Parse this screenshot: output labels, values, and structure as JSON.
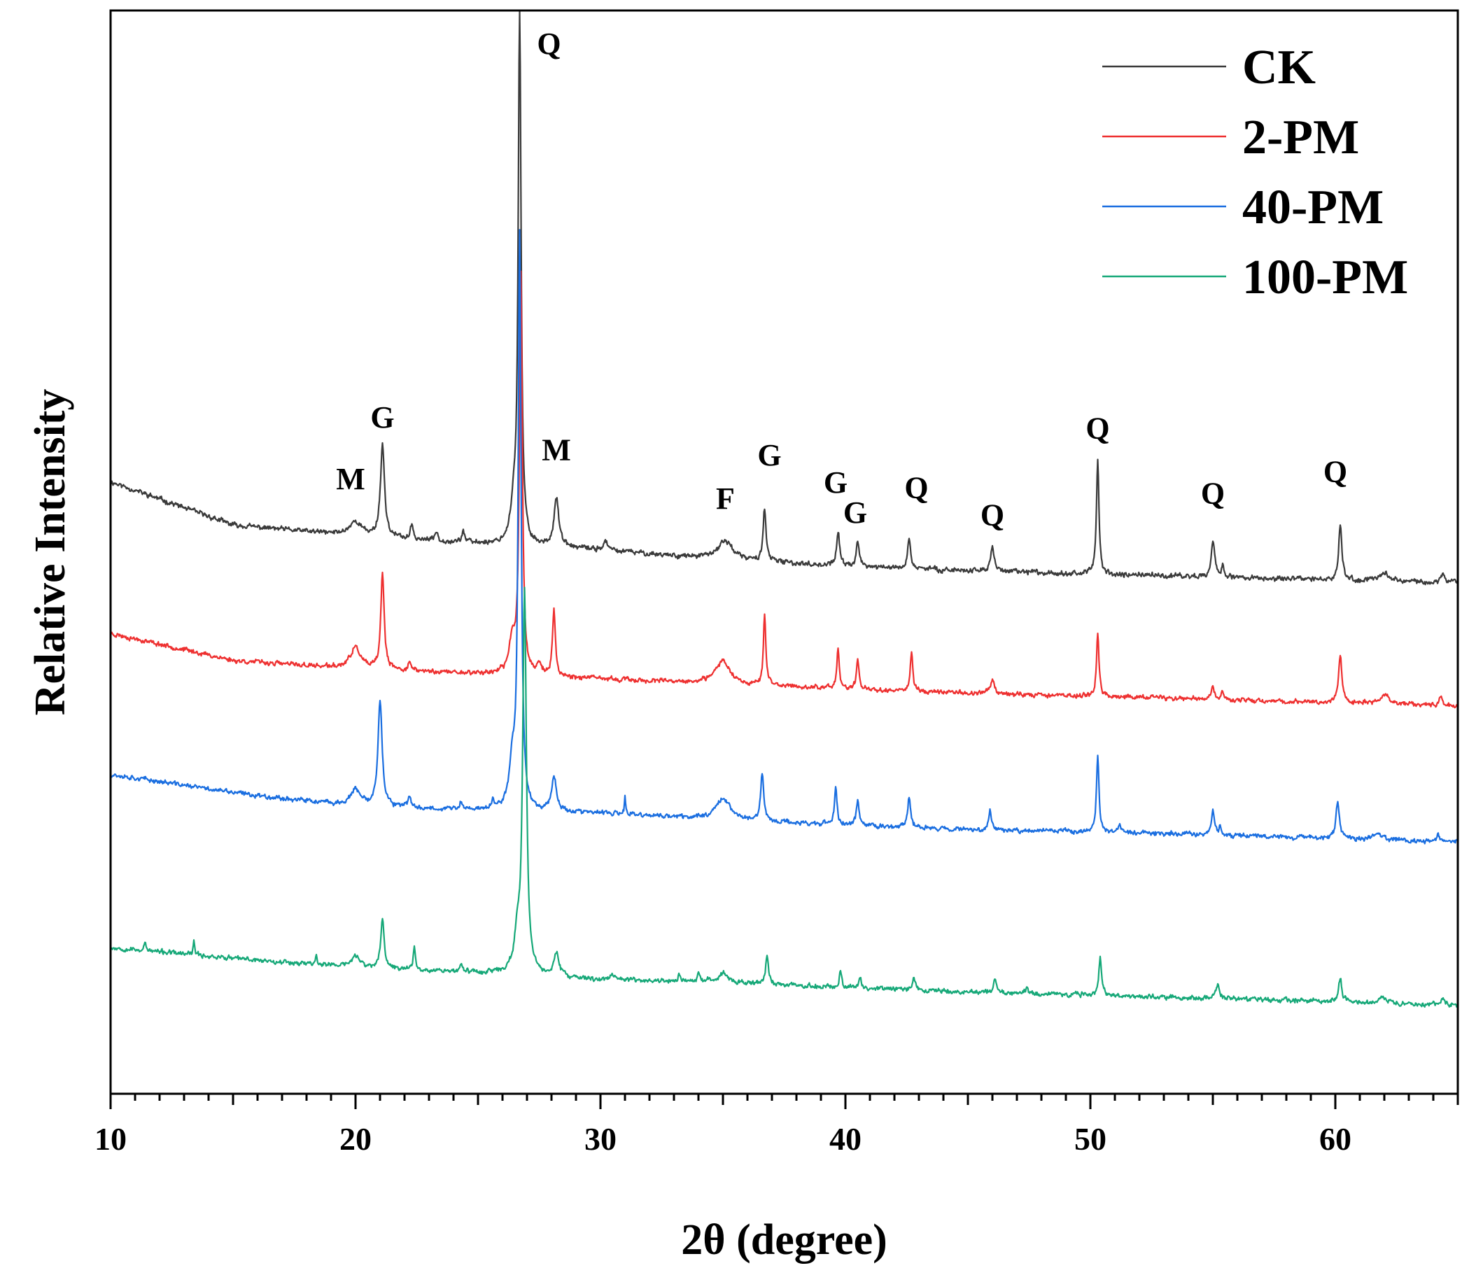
{
  "chart_data": {
    "type": "line",
    "title": "",
    "xlabel": "2θ (degree)",
    "ylabel": "Relative Intensity",
    "xlim": [
      10,
      65
    ],
    "ylim": [
      0,
      100
    ],
    "xticks": [
      10,
      20,
      30,
      40,
      50,
      60
    ],
    "yticks_shown": false,
    "grid": false,
    "legend_position": "top-right",
    "series": [
      {
        "name": "CK",
        "color": "#3a3a3a",
        "baseline": [
          [
            10,
            56.5
          ],
          [
            15,
            52.5
          ],
          [
            20,
            51.5
          ],
          [
            25,
            50.8
          ],
          [
            30,
            50.2
          ],
          [
            35,
            49.3
          ],
          [
            40,
            48.7
          ],
          [
            45,
            48.3
          ],
          [
            50,
            48.0
          ],
          [
            55,
            47.7
          ],
          [
            60,
            47.4
          ],
          [
            65,
            47.2
          ]
        ],
        "peaks": [
          [
            20.0,
            1.3,
            0.3
          ],
          [
            21.1,
            8.5,
            0.1
          ],
          [
            22.3,
            1.3,
            0.06
          ],
          [
            23.3,
            0.9,
            0.06
          ],
          [
            24.4,
            1.1,
            0.06
          ],
          [
            26.7,
            49.0,
            0.07
          ],
          [
            26.45,
            3.0,
            0.15
          ],
          [
            28.2,
            4.5,
            0.12
          ],
          [
            30.2,
            0.8,
            0.1
          ],
          [
            35.1,
            1.8,
            0.35
          ],
          [
            36.7,
            5.0,
            0.07
          ],
          [
            39.7,
            3.2,
            0.07
          ],
          [
            40.5,
            2.4,
            0.07
          ],
          [
            42.6,
            2.8,
            0.07
          ],
          [
            46.0,
            2.4,
            0.08
          ],
          [
            50.3,
            10.5,
            0.06
          ],
          [
            55.0,
            3.3,
            0.09
          ],
          [
            55.4,
            0.9,
            0.06
          ],
          [
            60.2,
            5.0,
            0.08
          ],
          [
            62.0,
            0.8,
            0.25
          ],
          [
            64.4,
            0.7,
            0.08
          ]
        ],
        "noise": 0.32,
        "seed": 11
      },
      {
        "name": "2-PM",
        "color": "#ee3030",
        "baseline": [
          [
            10,
            42.5
          ],
          [
            15,
            40.0
          ],
          [
            20,
            39.2
          ],
          [
            25,
            38.8
          ],
          [
            30,
            38.3
          ],
          [
            35,
            37.8
          ],
          [
            40,
            37.4
          ],
          [
            45,
            37.0
          ],
          [
            50,
            36.7
          ],
          [
            55,
            36.4
          ],
          [
            60,
            36.1
          ],
          [
            65,
            35.8
          ]
        ],
        "peaks": [
          [
            20.0,
            2.0,
            0.25
          ],
          [
            21.1,
            9.0,
            0.08
          ],
          [
            22.2,
            0.9,
            0.06
          ],
          [
            26.75,
            37.0,
            0.07
          ],
          [
            26.4,
            3.0,
            0.15
          ],
          [
            28.1,
            6.0,
            0.07
          ],
          [
            27.5,
            1.0,
            0.1
          ],
          [
            35.0,
            2.2,
            0.35
          ],
          [
            36.7,
            6.5,
            0.06
          ],
          [
            39.7,
            3.6,
            0.06
          ],
          [
            40.5,
            2.6,
            0.06
          ],
          [
            42.7,
            3.6,
            0.06
          ],
          [
            46.0,
            1.3,
            0.1
          ],
          [
            50.3,
            5.8,
            0.06
          ],
          [
            55.0,
            1.3,
            0.07
          ],
          [
            55.4,
            0.9,
            0.05
          ],
          [
            60.2,
            4.4,
            0.08
          ],
          [
            62.0,
            0.8,
            0.25
          ],
          [
            64.3,
            0.8,
            0.07
          ]
        ],
        "noise": 0.3,
        "seed": 23
      },
      {
        "name": "40-PM",
        "color": "#1a6ee0",
        "baseline": [
          [
            10,
            29.5
          ],
          [
            15,
            27.8
          ],
          [
            20,
            26.5
          ],
          [
            25,
            26.2
          ],
          [
            30,
            25.9
          ],
          [
            35,
            25.3
          ],
          [
            40,
            24.8
          ],
          [
            45,
            24.4
          ],
          [
            50,
            24.2
          ],
          [
            55,
            23.9
          ],
          [
            60,
            23.6
          ],
          [
            65,
            23.2
          ]
        ],
        "peaks": [
          [
            20.0,
            1.5,
            0.25
          ],
          [
            21.0,
            10.0,
            0.1
          ],
          [
            22.2,
            1.2,
            0.06
          ],
          [
            24.3,
            0.6,
            0.06
          ],
          [
            25.6,
            0.7,
            0.06
          ],
          [
            26.7,
            53.0,
            0.07
          ],
          [
            26.4,
            4.0,
            0.15
          ],
          [
            28.1,
            3.2,
            0.12
          ],
          [
            31.0,
            1.5,
            0.03
          ],
          [
            35.0,
            2.0,
            0.35
          ],
          [
            36.6,
            4.5,
            0.07
          ],
          [
            39.6,
            3.5,
            0.06
          ],
          [
            40.5,
            2.3,
            0.07
          ],
          [
            42.6,
            2.7,
            0.07
          ],
          [
            45.9,
            1.8,
            0.07
          ],
          [
            50.3,
            7.0,
            0.06
          ],
          [
            51.2,
            0.8,
            0.05
          ],
          [
            55.0,
            2.2,
            0.07
          ],
          [
            55.3,
            1.0,
            0.05
          ],
          [
            60.1,
            3.5,
            0.08
          ],
          [
            61.7,
            0.6,
            0.2
          ],
          [
            64.2,
            0.6,
            0.07
          ]
        ],
        "noise": 0.3,
        "seed": 37
      },
      {
        "name": "100-PM",
        "color": "#16a878",
        "baseline": [
          [
            10,
            13.5
          ],
          [
            15,
            12.5
          ],
          [
            20,
            11.7
          ],
          [
            25,
            11.2
          ],
          [
            30,
            10.5
          ],
          [
            35,
            10.3
          ],
          [
            40,
            9.8
          ],
          [
            45,
            9.4
          ],
          [
            50,
            9.1
          ],
          [
            55,
            8.8
          ],
          [
            60,
            8.5
          ],
          [
            65,
            8.2
          ]
        ],
        "peaks": [
          [
            11.4,
            0.8,
            0.04
          ],
          [
            13.4,
            1.2,
            0.04
          ],
          [
            18.4,
            0.8,
            0.04
          ],
          [
            20.0,
            1.0,
            0.2
          ],
          [
            21.1,
            4.5,
            0.08
          ],
          [
            22.4,
            2.2,
            0.05
          ],
          [
            24.3,
            0.6,
            0.06
          ],
          [
            26.9,
            35.0,
            0.09
          ],
          [
            26.6,
            3.0,
            0.15
          ],
          [
            28.2,
            2.2,
            0.12
          ],
          [
            30.5,
            0.5,
            0.15
          ],
          [
            33.2,
            0.6,
            0.05
          ],
          [
            34.0,
            0.7,
            0.05
          ],
          [
            35.0,
            0.8,
            0.25
          ],
          [
            36.8,
            2.5,
            0.07
          ],
          [
            39.8,
            1.5,
            0.06
          ],
          [
            40.6,
            0.8,
            0.07
          ],
          [
            42.8,
            1.2,
            0.07
          ],
          [
            46.1,
            1.4,
            0.07
          ],
          [
            47.4,
            0.6,
            0.05
          ],
          [
            50.4,
            3.5,
            0.07
          ],
          [
            55.2,
            1.3,
            0.08
          ],
          [
            60.2,
            2.3,
            0.08
          ],
          [
            61.9,
            0.5,
            0.2
          ],
          [
            64.4,
            0.6,
            0.07
          ]
        ],
        "noise": 0.3,
        "seed": 53
      }
    ],
    "annotations": [
      {
        "text": "Q",
        "x": 27.9,
        "y": 96.0
      },
      {
        "text": "M",
        "x": 19.8,
        "y": 55.8
      },
      {
        "text": "G",
        "x": 21.1,
        "y": 61.5
      },
      {
        "text": "M",
        "x": 28.2,
        "y": 58.5
      },
      {
        "text": "F",
        "x": 35.1,
        "y": 54.0
      },
      {
        "text": "G",
        "x": 36.9,
        "y": 58.0
      },
      {
        "text": "G",
        "x": 39.6,
        "y": 55.5
      },
      {
        "text": "G",
        "x": 40.4,
        "y": 52.7
      },
      {
        "text": "Q",
        "x": 42.9,
        "y": 55.0
      },
      {
        "text": "Q",
        "x": 46.0,
        "y": 52.5
      },
      {
        "text": "Q",
        "x": 50.3,
        "y": 60.5
      },
      {
        "text": "Q",
        "x": 55.0,
        "y": 54.5
      },
      {
        "text": "Q",
        "x": 60.0,
        "y": 56.5
      }
    ]
  }
}
